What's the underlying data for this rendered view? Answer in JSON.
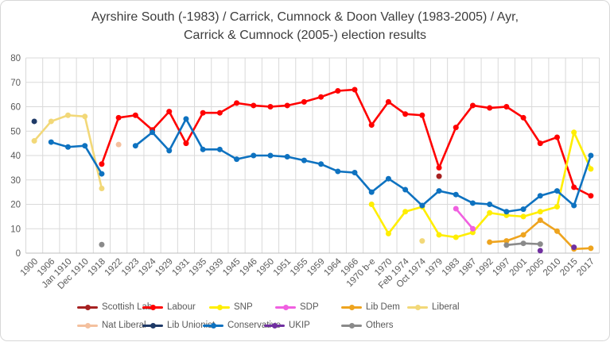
{
  "chart_data": {
    "type": "line",
    "title": "Ayrshire South (-1983) / Carrick, Cumnock & Doon Valley (1983-2005) / Ayr, Carrick & Cumnock (2005-) election results",
    "categories": [
      "1900",
      "1906",
      "Jan 1910",
      "Dec 1910",
      "1918",
      "1922",
      "1923",
      "1924",
      "1929",
      "1931",
      "1935",
      "1939",
      "1945",
      "1946",
      "1950",
      "1951",
      "1955",
      "1959",
      "1964",
      "1966",
      "1970 b-e",
      "1970",
      "Feb 1974",
      "Oct 1974",
      "1979",
      "1983",
      "1987",
      "1992",
      "1997",
      "2001",
      "2005",
      "2010",
      "2015",
      "2017"
    ],
    "ylabel": "",
    "xlabel": "",
    "ylim": [
      0,
      80
    ],
    "ytick_step": 10,
    "grid": true,
    "legend_position": "bottom",
    "units": "percent of vote (approx, read from chart)",
    "series": [
      {
        "name": "Scottish Lab",
        "color": "#a62121",
        "points": {
          "1979": 31.5
        }
      },
      {
        "name": "Labour",
        "color": "#ff0000",
        "points": {
          "1918": 36.5,
          "1922": 55.5,
          "1923": 56.5,
          "1924": 50.5,
          "1929": 58,
          "1931": 45,
          "1935": 57.5,
          "1939": 57.5,
          "1945": 61.5,
          "1946": 60.5,
          "1950": 60,
          "1951": 60.5,
          "1955": 62,
          "1959": 64,
          "1964": 66.5,
          "1966": 67,
          "1970 b-e": 52.5,
          "1970": 62,
          "Feb 1974": 57,
          "Oct 1974": 56.5,
          "1979": 35,
          "1983": 51.5,
          "1987": 60.5,
          "1992": 59.5,
          "1997": 60,
          "2001": 55.5,
          "2005": 45,
          "2010": 47.5,
          "2015": 27,
          "2017": 23.5
        }
      },
      {
        "name": "SNP",
        "color": "#ffee00",
        "points": {
          "1970 b-e": 20,
          "1970": 8,
          "Feb 1974": 17,
          "Oct 1974": 19,
          "1979": 7.5,
          "1983": 6.5,
          "1987": 8.5,
          "1992": 16.5,
          "1997": 15.5,
          "2001": 15,
          "2005": 17,
          "2010": 19,
          "2015": 49.5,
          "2017": 34.5
        }
      },
      {
        "name": "SDP",
        "color": "#f060e0",
        "points": {
          "1983": 18.2,
          "1987": 10
        }
      },
      {
        "name": "Lib Dem",
        "color": "#eea41f",
        "points": {
          "1992": 4.5,
          "1997": 5,
          "2001": 7.5,
          "2005": 13.5,
          "2010": 9,
          "2015": 1.7,
          "2017": 2
        }
      },
      {
        "name": "Liberal",
        "color": "#f2d878",
        "points": {
          "1900": 46,
          "1906": 54,
          "Jan 1910": 56.5,
          "Dec 1910": 56,
          "1918": 26.5,
          "Oct 1974": 5
        }
      },
      {
        "name": "Nat Liberal",
        "color": "#f4c09e",
        "points": {
          "1922": 44.5
        }
      },
      {
        "name": "Lib Unionist",
        "color": "#1f3a67",
        "points": {
          "1900": 54
        }
      },
      {
        "name": "Conservative",
        "color": "#0e72c0",
        "points": {
          "1906": 45.5,
          "Jan 1910": 43.5,
          "Dec 1910": 44,
          "1918": 32.5,
          "1923": 44,
          "1924": 49.5,
          "1929": 42,
          "1931": 55,
          "1935": 42.5,
          "1939": 42.5,
          "1945": 38.5,
          "1946": 40,
          "1950": 40,
          "1951": 39.5,
          "1955": 38,
          "1959": 36.5,
          "1964": 33.5,
          "1966": 33,
          "1970 b-e": 25,
          "1970": 30.5,
          "Feb 1974": 26,
          "Oct 1974": 19.5,
          "1979": 25.5,
          "1983": 24,
          "1987": 20.5,
          "1992": 20,
          "1997": 17,
          "2001": 18,
          "2005": 23.5,
          "2010": 25.5,
          "2015": 19.5,
          "2017": 40
        }
      },
      {
        "name": "UKIP",
        "color": "#702fa0",
        "points": {
          "2005": 1,
          "2015": 2.4
        }
      },
      {
        "name": "Others",
        "color": "#8a8a8a",
        "points": {
          "1918": 3.5,
          "1997": 3.3,
          "2001": 4,
          "2005": 3.7
        }
      }
    ],
    "legend_rows": [
      [
        "Scottish Lab",
        "Labour",
        "SNP",
        "SDP",
        "Lib Dem",
        "Liberal"
      ],
      [
        "Nat Liberal",
        "Lib Unionist",
        "Conservative",
        "UKIP",
        "Others"
      ]
    ]
  }
}
